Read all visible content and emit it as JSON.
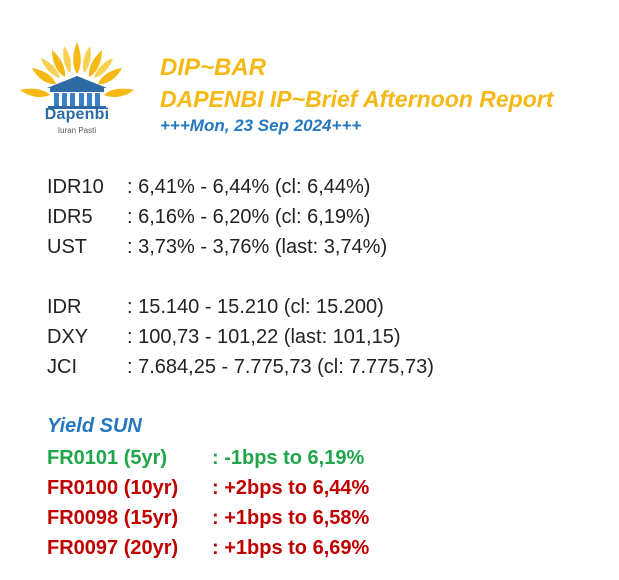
{
  "logo": {
    "name": "Dapenbi",
    "tagline": "Iuran Pasti"
  },
  "header": {
    "brand": "DIP~BAR",
    "report_title": "DAPENBI IP~Brief Afternoon Report",
    "date": "+++Mon, 23 Sep 2024+++"
  },
  "rates": [
    {
      "label": "IDR10",
      "value": ": 6,41% - 6,44% (cl: 6,44%)"
    },
    {
      "label": "IDR5",
      "value": ": 6,16% - 6,20% (cl: 6,19%)"
    },
    {
      "label": "UST",
      "value": ": 3,73% - 3,76% (last: 3,74%)"
    }
  ],
  "markets": [
    {
      "label": "IDR",
      "value": ": 15.140 - 15.210 (cl: 15.200)"
    },
    {
      "label": "DXY",
      "value": ": 100,73 - 101,22 (last: 101,15)"
    },
    {
      "label": "JCI",
      "value": ": 7.684,25 - 7.775,73 (cl: 7.775,73)"
    }
  ],
  "yield_sun": {
    "title": "Yield SUN",
    "rows": [
      {
        "series": "FR0101 (5yr)",
        "change": ": -1bps to 6,19%",
        "color": "#1fa64a"
      },
      {
        "series": "FR0100 (10yr)",
        "change": ": +2bps to 6,44%",
        "color": "#c00000"
      },
      {
        "series": "FR0098 (15yr)",
        "change": ": +1bps to 6,58%",
        "color": "#c00000"
      },
      {
        "series": "FR0097 (20yr)",
        "change": ": +1bps to 6,69%",
        "color": "#c00000"
      }
    ]
  },
  "colors": {
    "brand_yellow": "#f5b814",
    "accent_blue": "#2478c0",
    "down_green": "#1fa64a",
    "up_red": "#c00000"
  }
}
